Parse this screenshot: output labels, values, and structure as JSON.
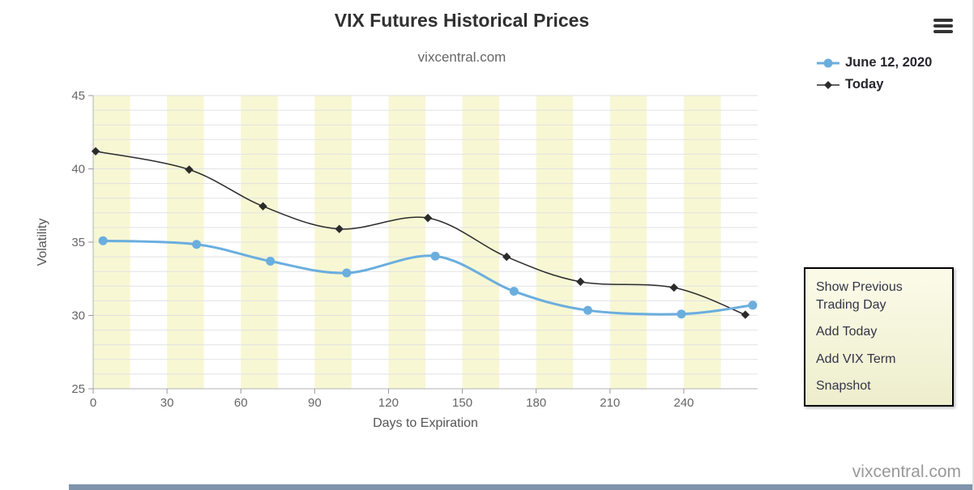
{
  "header": {
    "title": "VIX Futures Historical Prices",
    "subtitle": "vixcentral.com"
  },
  "context_menu": {
    "items": [
      "Show Previous Trading Day",
      "Add Today",
      "Add VIX Term",
      "Snapshot"
    ]
  },
  "watermark": "vixcentral.com",
  "colors": {
    "band": "#f7f7d4",
    "gridline": "#e2e2e2",
    "axis": "#b3b3b3",
    "tick_text": "#666666",
    "bottom_bar": "#7f93ab"
  },
  "chart_data": {
    "type": "line",
    "title": "VIX Futures Historical Prices",
    "subtitle": "vixcentral.com",
    "xlabel": "Days to Expiration",
    "ylabel": "Volatility",
    "xlim": [
      0,
      270
    ],
    "ylim": [
      25,
      45
    ],
    "x_ticks": [
      0,
      30,
      60,
      90,
      120,
      150,
      180,
      210,
      240
    ],
    "y_ticks": [
      25,
      30,
      35,
      40,
      45
    ],
    "grid": "horizontal-minor-every-1",
    "band_interval_days": 15,
    "band_color": "#f7f7d4",
    "legend_position": "top-right",
    "series": [
      {
        "name": "June 12, 2020",
        "color": "#6aaede",
        "marker": "circle",
        "line_width": 3,
        "x": [
          4,
          42,
          72,
          103,
          139,
          171,
          201,
          239,
          268
        ],
        "values": [
          35.1,
          34.85,
          33.7,
          32.9,
          34.05,
          31.65,
          30.35,
          30.1,
          30.7
        ]
      },
      {
        "name": "Today",
        "color": "#2b2b2b",
        "marker": "diamond",
        "line_width": 1.5,
        "x": [
          1,
          39,
          69,
          100,
          136,
          168,
          198,
          236,
          265
        ],
        "values": [
          41.2,
          39.95,
          37.45,
          35.9,
          36.65,
          34.0,
          32.3,
          31.9,
          30.05
        ]
      }
    ]
  }
}
